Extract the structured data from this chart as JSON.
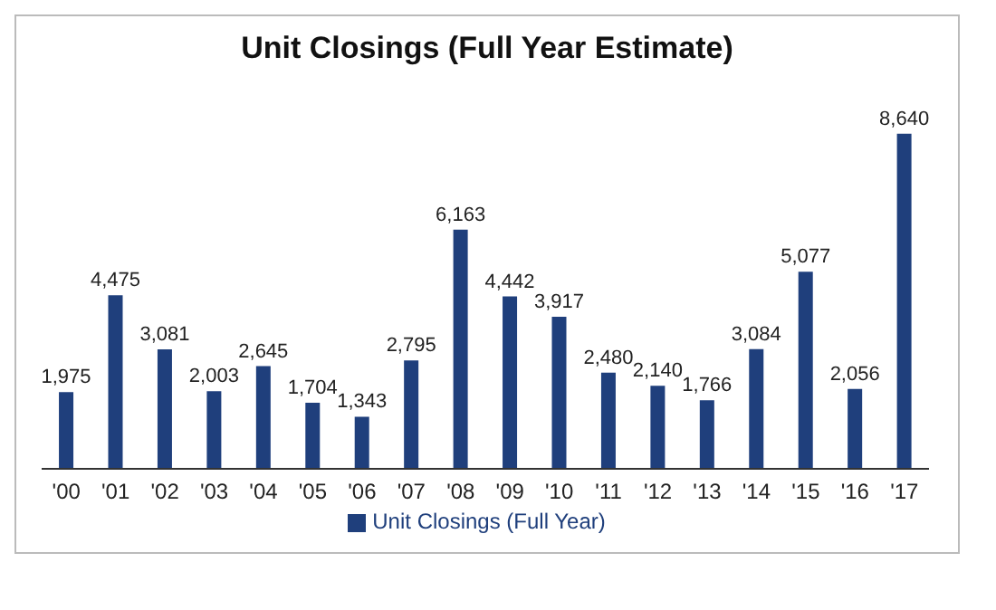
{
  "chart_data": {
    "type": "bar",
    "title": "Unit Closings (Full Year Estimate)",
    "categories": [
      "'00",
      "'01",
      "'02",
      "'03",
      "'04",
      "'05",
      "'06",
      "'07",
      "'08",
      "'09",
      "'10",
      "'11",
      "'12",
      "'13",
      "'14",
      "'15",
      "'16",
      "'17"
    ],
    "series": [
      {
        "name": "Unit Closings (Full Year)",
        "color": "#1f3f7c",
        "values": [
          1975,
          4475,
          3081,
          2003,
          2645,
          1704,
          1343,
          2795,
          6163,
          4442,
          3917,
          2480,
          2140,
          1766,
          3084,
          5077,
          2056,
          8640
        ],
        "value_labels": [
          "1,975",
          "4,475",
          "3,081",
          "2,003",
          "2,645",
          "1,704",
          "1,343",
          "2,795",
          "6,163",
          "4,442",
          "3,917",
          "2,480",
          "2,140",
          "1,766",
          "3,084",
          "5,077",
          "2,056",
          "8,640"
        ]
      }
    ],
    "legend": "bottom"
  }
}
